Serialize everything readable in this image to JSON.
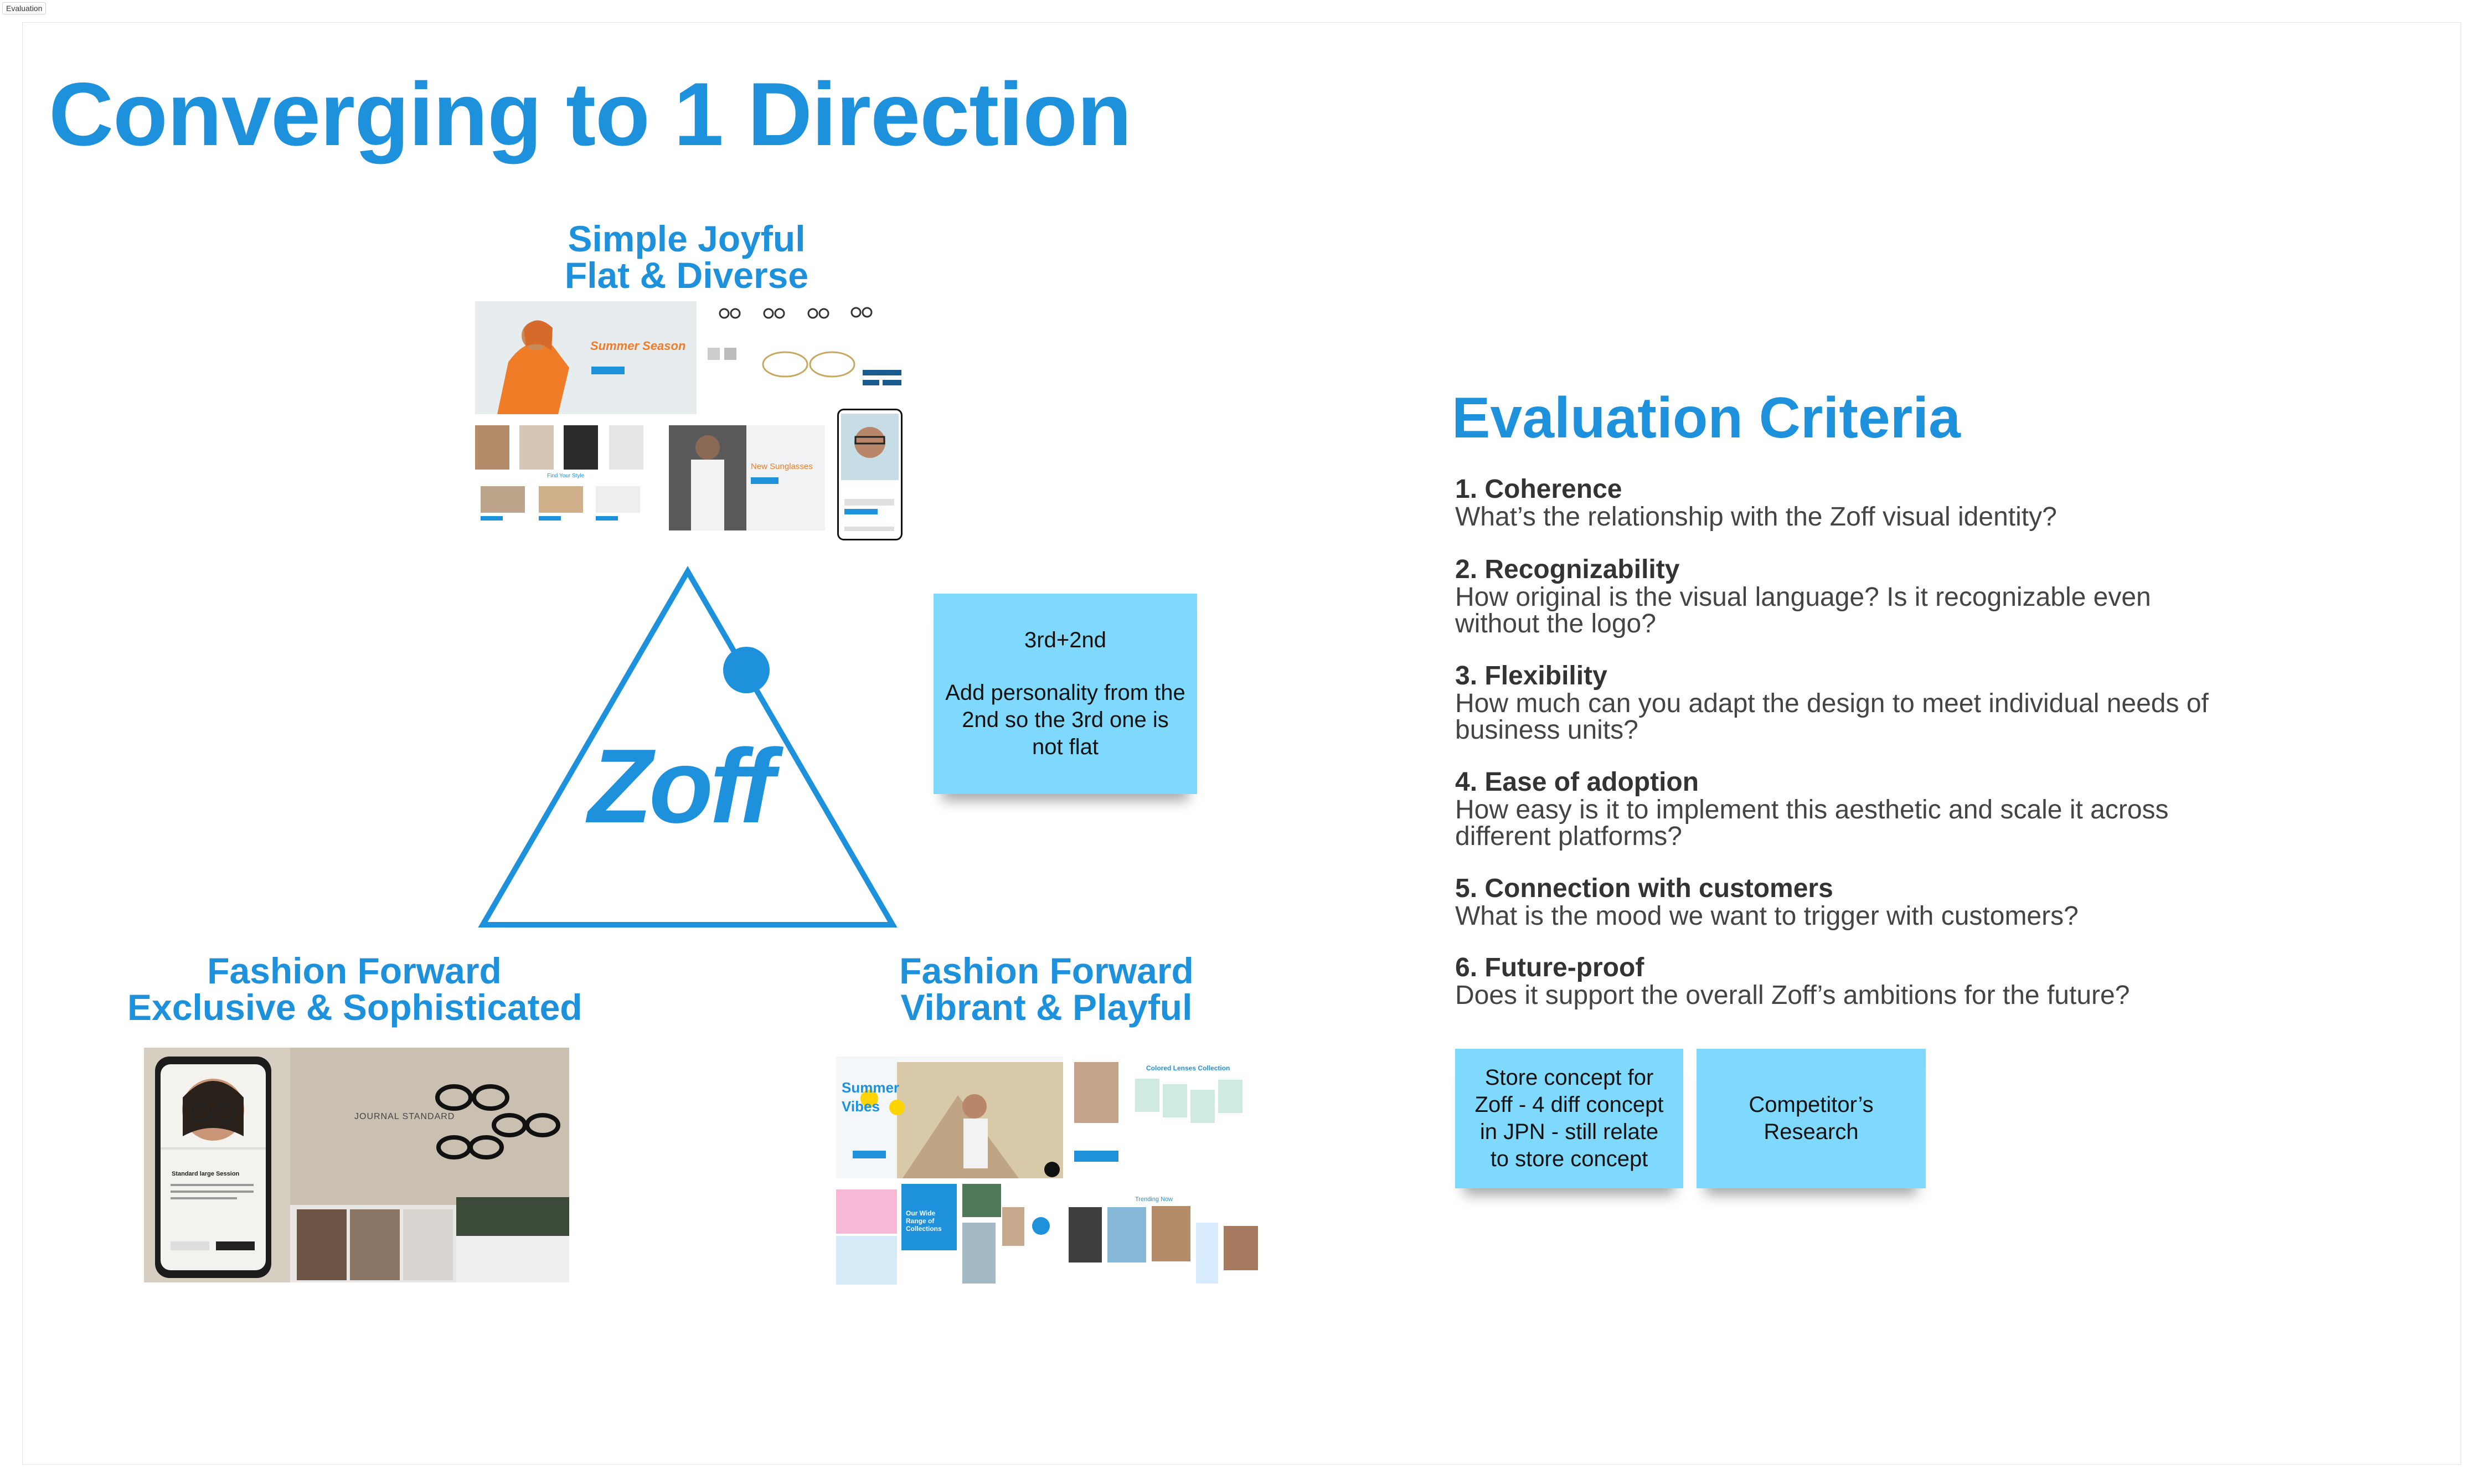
{
  "frame_label": "Evaluation",
  "page_title": "Converging to 1 Direction",
  "directions": {
    "top": {
      "line1": "Simple Joyful",
      "line2": "Flat & Diverse",
      "summer_text": "Summer Season",
      "sunglasses_text": "New Sunglasses",
      "find_style": "Find Your Style"
    },
    "left": {
      "line1": "Fashion Forward",
      "line2": "Exclusive & Sophisticated",
      "brand_text": "JOURNAL STANDARD",
      "phone_heading": "Standard large Session"
    },
    "right": {
      "line1": "Fashion Forward",
      "line2": "Vibrant & Playful",
      "summer_vibes": "Summer Vibes",
      "collection_text": "Our Wide Range of Collections",
      "colored_lenses": "Colored Lenses Collection",
      "trending": "Trending Now"
    }
  },
  "logo": {
    "text": "Zoff"
  },
  "sticky_direction": {
    "line1": "3rd+2nd",
    "line2": "Add personality from the 2nd so the 3rd one is not flat"
  },
  "criteria": {
    "title": "Evaluation Criteria",
    "items": [
      {
        "heading": "1. Coherence",
        "desc": "What’s the relationship with the Zoff visual identity?"
      },
      {
        "heading": "2. Recognizability",
        "desc": "How original is the visual language? Is it recognizable even without the logo?"
      },
      {
        "heading": "3. Flexibility",
        "desc": "How much can you adapt the design to meet individual needs of business units?"
      },
      {
        "heading": "4. Ease of adoption",
        "desc": "How easy is it to implement this aesthetic and scale it across different platforms?"
      },
      {
        "heading": "5. Connection with customers",
        "desc": "What is the mood we want to trigger with customers?"
      },
      {
        "heading": "6. Future-proof",
        "desc": "Does it support the overall Zoff’s ambitions for the future?"
      }
    ]
  },
  "sticky_store": "Store concept for Zoff - 4 diff concept in JPN - still relate to store concept",
  "sticky_competitor": "Competitor’s Research",
  "colors": {
    "accent": "#1e91dd",
    "sticky": "#7fd9fd"
  }
}
